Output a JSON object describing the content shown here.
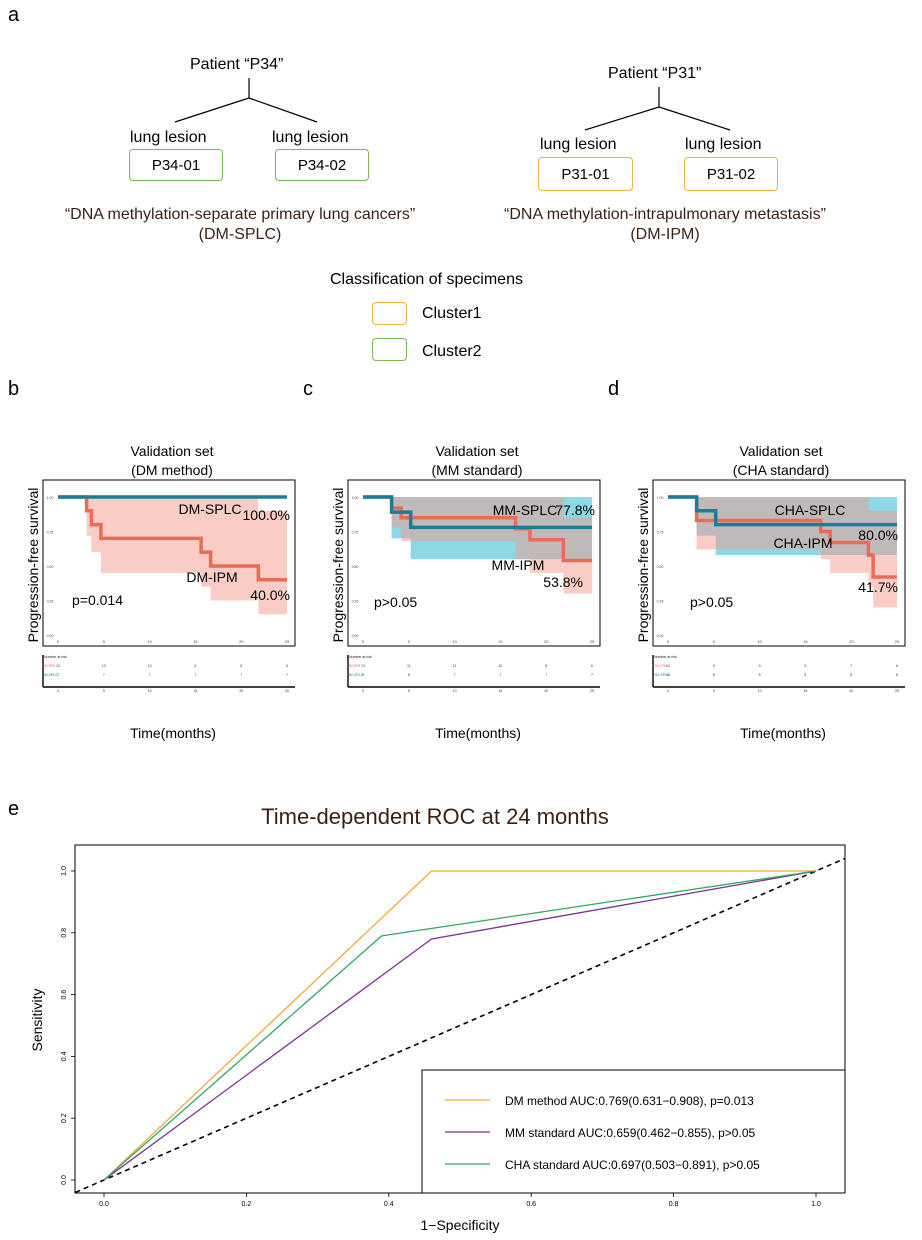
{
  "panel_a": {
    "label": "a",
    "left": {
      "patient": "Patient “P34”",
      "lesions": [
        {
          "title": "lung lesion",
          "specimen": "P34-01",
          "cluster": "Cluster2"
        },
        {
          "title": "lung lesion",
          "specimen": "P34-02",
          "cluster": "Cluster2"
        }
      ],
      "diagnosis": "“DNA methylation-separate primary lung cancers”",
      "abbrev": "(DM-SPLC)"
    },
    "right": {
      "patient": "Patient “P31”",
      "lesions": [
        {
          "title": "lung lesion",
          "specimen": "P31-01",
          "cluster": "Cluster1"
        },
        {
          "title": "lung lesion",
          "specimen": "P31-02",
          "cluster": "Cluster1"
        }
      ],
      "diagnosis": "“DNA methylation-intrapulmonary metastasis”",
      "abbrev": "(DM-IPM)"
    },
    "legend_title": "Classification of specimens",
    "legend": [
      {
        "label": "Cluster1",
        "color": "#f2b24a"
      },
      {
        "label": "Cluster2",
        "color": "#7cb85a"
      }
    ]
  },
  "colors": {
    "teal": "#1a7f96",
    "red": "#ea6b5a",
    "orange": "#f4a73a",
    "purple": "#7b3294",
    "green": "#2faa62"
  },
  "chart_data": [
    {
      "panel": "b",
      "type": "line",
      "title": "Validation set",
      "subtitle": "(DM method)",
      "ylabel": "Progression-free survival",
      "xlabel": "Time(months)",
      "xlim": [
        0,
        24
      ],
      "ylim": [
        0,
        1
      ],
      "xticks": [
        0,
        5,
        10,
        15,
        20,
        25
      ],
      "yticks": [
        0.0,
        0.25,
        0.5,
        0.75,
        1.0
      ],
      "pvalue": "p=0.014",
      "series": [
        {
          "name": "DM-SPLC",
          "color": "#1a7f96",
          "end_label": "100.0%",
          "steps": [
            [
              0,
              1.0
            ],
            [
              24,
              1.0
            ]
          ]
        },
        {
          "name": "DM-IPM",
          "color": "#ea6b5a",
          "end_label": "40.0%",
          "steps": [
            [
              0,
              1.0
            ],
            [
              3,
              0.9
            ],
            [
              3.5,
              0.8
            ],
            [
              4.5,
              0.7
            ],
            [
              15,
              0.6
            ],
            [
              16,
              0.5
            ],
            [
              21,
              0.4
            ],
            [
              24,
              0.4
            ]
          ],
          "ci_upper": [
            [
              0,
              1.0
            ],
            [
              3,
              1.0
            ],
            [
              21,
              0.9
            ],
            [
              24,
              0.9
            ]
          ],
          "ci_lower": [
            [
              0,
              1.0
            ],
            [
              3,
              0.72
            ],
            [
              3.5,
              0.6
            ],
            [
              4.5,
              0.45
            ],
            [
              15,
              0.35
            ],
            [
              16,
              0.25
            ],
            [
              21,
              0.15
            ],
            [
              24,
              0.15
            ]
          ]
        }
      ],
      "risk_table": {
        "title": "Number at risk",
        "rows": [
          {
            "name": "DM-IPM",
            "color": "#ea6b5a",
            "values": [
              "10",
              "10",
              "10",
              "6",
              "6",
              "6"
            ]
          },
          {
            "name": "DM-SPLC",
            "color": "#1a7f96",
            "values": [
              "7",
              "7",
              "7",
              "7",
              "7",
              "7"
            ]
          }
        ],
        "times": [
          "0",
          "5",
          "10",
          "15",
          "20",
          "25"
        ]
      }
    },
    {
      "panel": "c",
      "type": "line",
      "title": "Validation set",
      "subtitle": "(MM standard)",
      "ylabel": "Progression-free survival",
      "xlabel": "Time(months)",
      "xlim": [
        0,
        24
      ],
      "ylim": [
        0,
        1
      ],
      "xticks": [
        0,
        5,
        10,
        15,
        20,
        25
      ],
      "yticks": [
        0.0,
        0.25,
        0.5,
        0.75,
        1.0
      ],
      "pvalue": "p>0.05",
      "series": [
        {
          "name": "MM-SPLC",
          "color": "#1a7f96",
          "end_label": "77.8%",
          "steps": [
            [
              0,
              1.0
            ],
            [
              3,
              0.89
            ],
            [
              5,
              0.78
            ],
            [
              24,
              0.78
            ]
          ],
          "ci_upper": [
            [
              0,
              1.0
            ],
            [
              3,
              1.0
            ],
            [
              24,
              1.0
            ]
          ],
          "ci_lower": [
            [
              0,
              1.0
            ],
            [
              3,
              0.7
            ],
            [
              5,
              0.55
            ],
            [
              24,
              0.55
            ]
          ]
        },
        {
          "name": "MM-IPM",
          "color": "#ea6b5a",
          "end_label": "53.8%",
          "steps": [
            [
              0,
              1.0
            ],
            [
              3,
              0.92
            ],
            [
              4,
              0.85
            ],
            [
              16,
              0.77
            ],
            [
              17.5,
              0.69
            ],
            [
              21,
              0.54
            ],
            [
              24,
              0.54
            ]
          ],
          "ci_upper": [
            [
              0,
              1.0
            ],
            [
              3,
              1.0
            ],
            [
              16,
              1.0
            ],
            [
              21,
              0.85
            ],
            [
              24,
              0.85
            ]
          ],
          "ci_lower": [
            [
              0,
              1.0
            ],
            [
              3,
              0.78
            ],
            [
              4,
              0.68
            ],
            [
              16,
              0.55
            ],
            [
              17.5,
              0.45
            ],
            [
              21,
              0.3
            ],
            [
              24,
              0.3
            ]
          ]
        }
      ],
      "risk_table": {
        "title": "Number at risk",
        "rows": [
          {
            "name": "MM-IPM",
            "color": "#ea6b5a",
            "values": [
              "13",
              "11",
              "11",
              "10",
              "8",
              "6"
            ]
          },
          {
            "name": "MM-SPLC",
            "color": "#1a7f96",
            "values": [
              "9",
              "8",
              "7",
              "7",
              "7",
              "7"
            ]
          }
        ],
        "times": [
          "0",
          "5",
          "10",
          "15",
          "20",
          "25"
        ]
      }
    },
    {
      "panel": "d",
      "type": "line",
      "title": "Validation set",
      "subtitle": "(CHA standard)",
      "ylabel": "Progression-free survival",
      "xlabel": "Time(months)",
      "xlim": [
        0,
        24
      ],
      "ylim": [
        0,
        1
      ],
      "xticks": [
        0,
        5,
        10,
        15,
        20,
        25
      ],
      "yticks": [
        0.0,
        0.25,
        0.5,
        0.75,
        1.0
      ],
      "pvalue": "p>0.05",
      "series": [
        {
          "name": "CHA-SPLC",
          "color": "#1a7f96",
          "end_label": "80.0%",
          "steps": [
            [
              0,
              1.0
            ],
            [
              3,
              0.9
            ],
            [
              5,
              0.8
            ],
            [
              24,
              0.8
            ]
          ],
          "ci_upper": [
            [
              0,
              1.0
            ],
            [
              3,
              1.0
            ],
            [
              24,
              1.0
            ]
          ],
          "ci_lower": [
            [
              0,
              1.0
            ],
            [
              3,
              0.72
            ],
            [
              5,
              0.58
            ],
            [
              24,
              0.58
            ]
          ]
        },
        {
          "name": "CHA-IPM",
          "color": "#ea6b5a",
          "end_label": "41.7%",
          "steps": [
            [
              0,
              1.0
            ],
            [
              3,
              0.83
            ],
            [
              16,
              0.75
            ],
            [
              17,
              0.67
            ],
            [
              21,
              0.58
            ],
            [
              21.5,
              0.42
            ],
            [
              24,
              0.42
            ]
          ],
          "ci_upper": [
            [
              0,
              1.0
            ],
            [
              3,
              1.0
            ],
            [
              21,
              0.9
            ],
            [
              24,
              0.78
            ]
          ],
          "ci_lower": [
            [
              0,
              1.0
            ],
            [
              3,
              0.62
            ],
            [
              16,
              0.55
            ],
            [
              17,
              0.45
            ],
            [
              21,
              0.35
            ],
            [
              21.5,
              0.2
            ],
            [
              24,
              0.2
            ]
          ]
        }
      ],
      "risk_table": {
        "title": "Number at risk",
        "rows": [
          {
            "name": "CHA-IPM",
            "color": "#ea6b5a",
            "values": [
              "12",
              "9",
              "9",
              "9",
              "7",
              "6"
            ]
          },
          {
            "name": "CHA-SPLC",
            "color": "#1a7f96",
            "values": [
              "10",
              "8",
              "8",
              "8",
              "8",
              "8"
            ]
          }
        ],
        "times": [
          "0",
          "5",
          "10",
          "15",
          "20",
          "25"
        ]
      }
    },
    {
      "panel": "e",
      "type": "line",
      "title": "Time-dependent ROC at 24 months",
      "xlabel": "1−Specificity",
      "ylabel": "Sensitivity",
      "xlim": [
        0,
        1
      ],
      "ylim": [
        0,
        1
      ],
      "xticks": [
        "0.0",
        "0.2",
        "0.4",
        "0.6",
        "0.8",
        "1.0"
      ],
      "yticks": [
        "0.0",
        "0.2",
        "0.4",
        "0.6",
        "0.8",
        "1.0"
      ],
      "legend_position": "bottom-right",
      "diagonal": true,
      "series": [
        {
          "name": "DM method AUC:0.769(0.631−0.908), p=0.013",
          "color": "#f4a73a",
          "points": [
            [
              0,
              0
            ],
            [
              0.46,
              1.0
            ],
            [
              1,
              1
            ]
          ]
        },
        {
          "name": "MM standard AUC:0.659(0.462−0.855), p>0.05",
          "color": "#7b3294",
          "points": [
            [
              0,
              0
            ],
            [
              0.46,
              0.78
            ],
            [
              1,
              1
            ]
          ]
        },
        {
          "name": "CHA standard AUC:0.697(0.503−0.891), p>0.05",
          "color": "#2faa62",
          "points": [
            [
              0,
              0
            ],
            [
              0.39,
              0.79
            ],
            [
              1,
              1
            ]
          ]
        }
      ]
    }
  ]
}
